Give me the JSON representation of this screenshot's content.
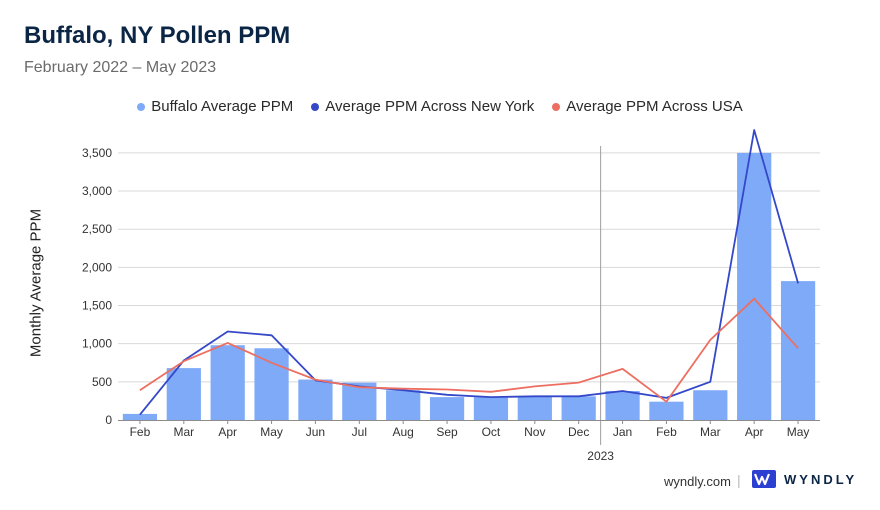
{
  "header": {
    "title": "Buffalo, NY Pollen PPM",
    "subtitle": "February 2022 – May 2023"
  },
  "footer": {
    "site": "wyndly.com",
    "separator": "|",
    "brand": "WYNDLY",
    "brand_logo_icon": "wyndly-logo-icon"
  },
  "colors": {
    "buffalo_bar": "#7faaf8",
    "new_york_line": "#3548c9",
    "usa_line": "#ec6f62",
    "grid": "#d9d9d9",
    "year_divider": "#9e9e9e"
  },
  "chart_data": {
    "type": "bar",
    "ylabel": "Monthly Average PPM",
    "xlabel": "",
    "ylim": [
      0,
      3800
    ],
    "yticks": [
      0,
      500,
      1000,
      1500,
      2000,
      2500,
      3000,
      3500
    ],
    "ytick_labels": [
      "0",
      "500",
      "1,000",
      "1,500",
      "2,000",
      "2,500",
      "3,000",
      "3,500"
    ],
    "categories": [
      "Feb",
      "Mar",
      "Apr",
      "May",
      "Jun",
      "Jul",
      "Aug",
      "Sep",
      "Oct",
      "Nov",
      "Dec",
      "Jan",
      "Feb",
      "Mar",
      "Apr",
      "May"
    ],
    "year_marker": {
      "label": "2023",
      "before_index": 11
    },
    "grid": true,
    "legend_position": "top-center",
    "series": [
      {
        "name": "Buffalo Average PPM",
        "type": "bar",
        "values": [
          80,
          680,
          980,
          940,
          530,
          490,
          390,
          300,
          300,
          310,
          310,
          380,
          240,
          390,
          3500,
          1820
        ]
      },
      {
        "name": "Average PPM Across New York",
        "type": "line",
        "values": [
          70,
          780,
          1160,
          1110,
          520,
          440,
          390,
          330,
          300,
          310,
          310,
          380,
          290,
          500,
          3800,
          1790
        ]
      },
      {
        "name": "Average PPM Across USA",
        "type": "line",
        "values": [
          390,
          770,
          1010,
          750,
          530,
          430,
          410,
          400,
          370,
          440,
          490,
          670,
          240,
          1050,
          1590,
          940
        ]
      }
    ]
  }
}
